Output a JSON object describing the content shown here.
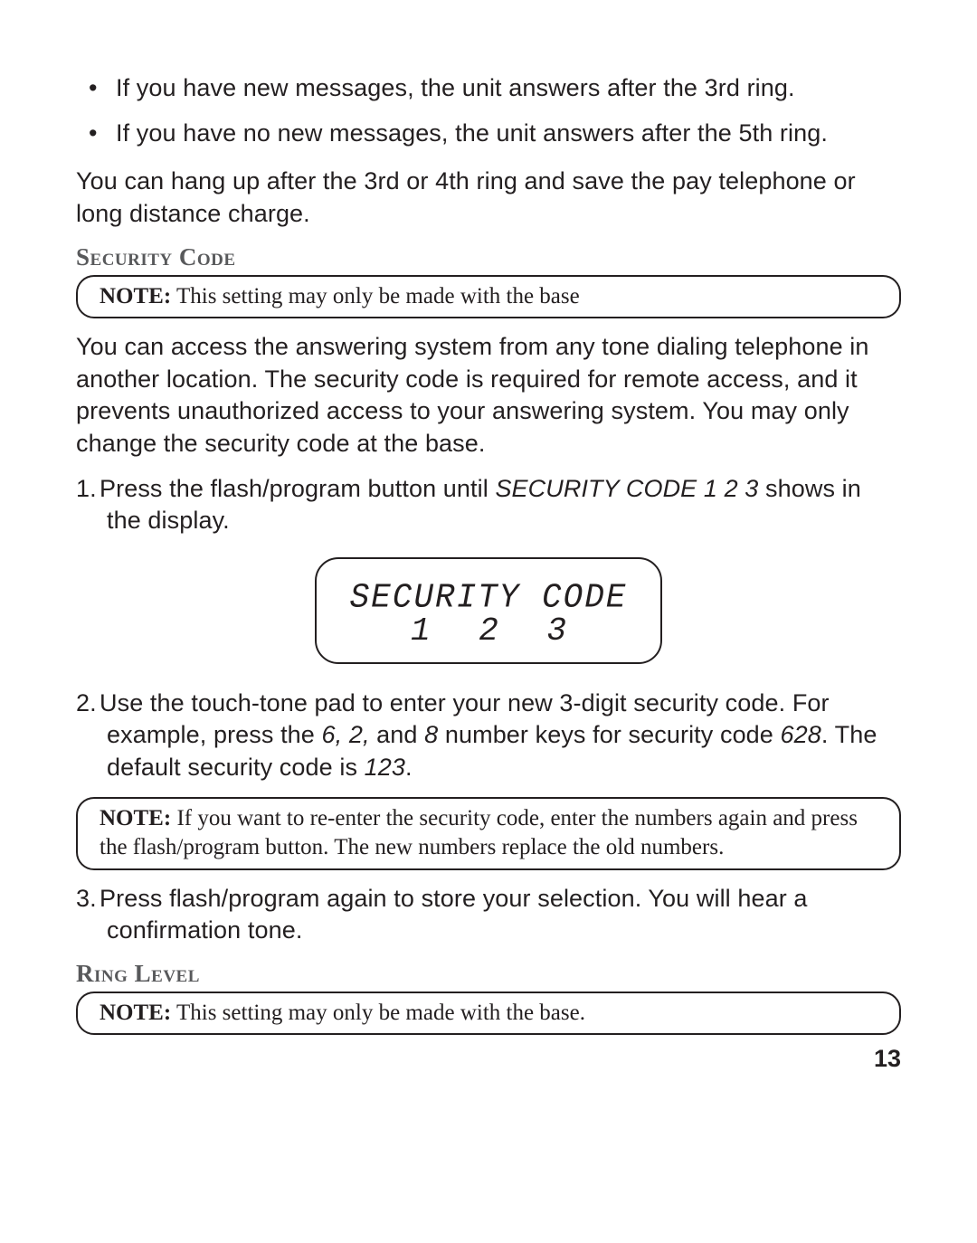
{
  "page_number": "13",
  "bullets": [
    "If you have new messages, the unit answers after the 3rd ring.",
    "If you have no new messages, the unit answers after the 5th ring."
  ],
  "intro_after_bullets": "You can hang up after the 3rd or 4th ring and save the pay telephone or long distance charge.",
  "security": {
    "heading": "Security Code",
    "note_label": "NOTE:",
    "note_text": " This setting may only be made with the base",
    "body": "You can access the answering system from any tone dialing telephone in another location. The security code is required for remote access, and it prevents unauthorized access to your answering system. You may only change the security code at the base.",
    "step1_pre": "Press the flash/program button until ",
    "step1_em": "SECURITY CODE 1 2 3",
    "step1_post": " shows in the display.",
    "lcd_line1": "SECURITY CODE",
    "lcd_line2": "1 2  3",
    "step2_pre": "Use the touch-tone pad to enter your new 3-digit security code. For example, press the ",
    "step2_em1": "6, 2,",
    "step2_mid1": " and ",
    "step2_em2": "8",
    "step2_mid2": " number keys for security code ",
    "step2_em3": "628",
    "step2_mid3": ". The default security code is ",
    "step2_em4": "123",
    "step2_post": ".",
    "note2_label": "NOTE:",
    "note2_text": " If you want to re-enter the security code, enter the numbers again and press the flash/program button. The new numbers replace the old numbers.",
    "step3": "Press flash/program again to store your selection. You will hear a confirmation tone."
  },
  "ring": {
    "heading": "Ring Level",
    "note_label": "NOTE:",
    "note_text": " This setting may only be made with the base."
  }
}
